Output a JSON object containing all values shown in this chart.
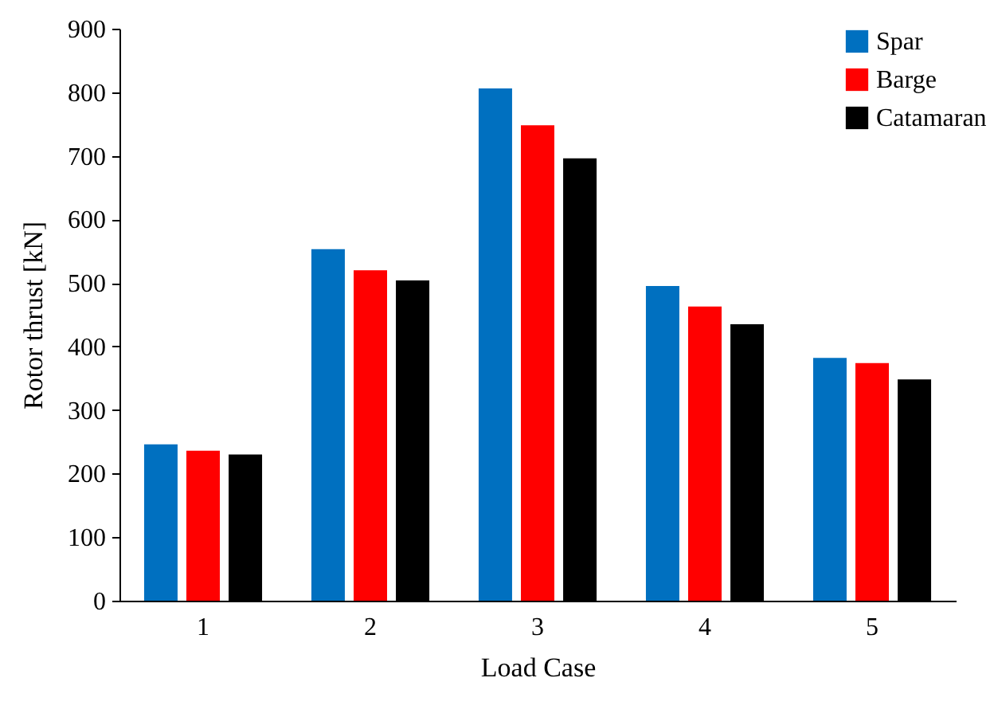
{
  "chart_data": {
    "type": "bar",
    "xlabel": "Load Case",
    "ylabel": "Rotor thrust [kN]",
    "categories": [
      "1",
      "2",
      "3",
      "4",
      "5"
    ],
    "series": [
      {
        "name": "Spar",
        "color": "#0070c0",
        "values": [
          246,
          553,
          806,
          495,
          382
        ]
      },
      {
        "name": "Barge",
        "color": "#ff0000",
        "values": [
          236,
          520,
          748,
          463,
          374
        ]
      },
      {
        "name": "Catamaran",
        "color": "#000000",
        "values": [
          230,
          504,
          696,
          435,
          348
        ]
      }
    ],
    "ylim": [
      0,
      900
    ],
    "yticks": [
      0,
      100,
      200,
      300,
      400,
      500,
      600,
      700,
      800,
      900
    ],
    "grid": false,
    "legend": "top right"
  }
}
